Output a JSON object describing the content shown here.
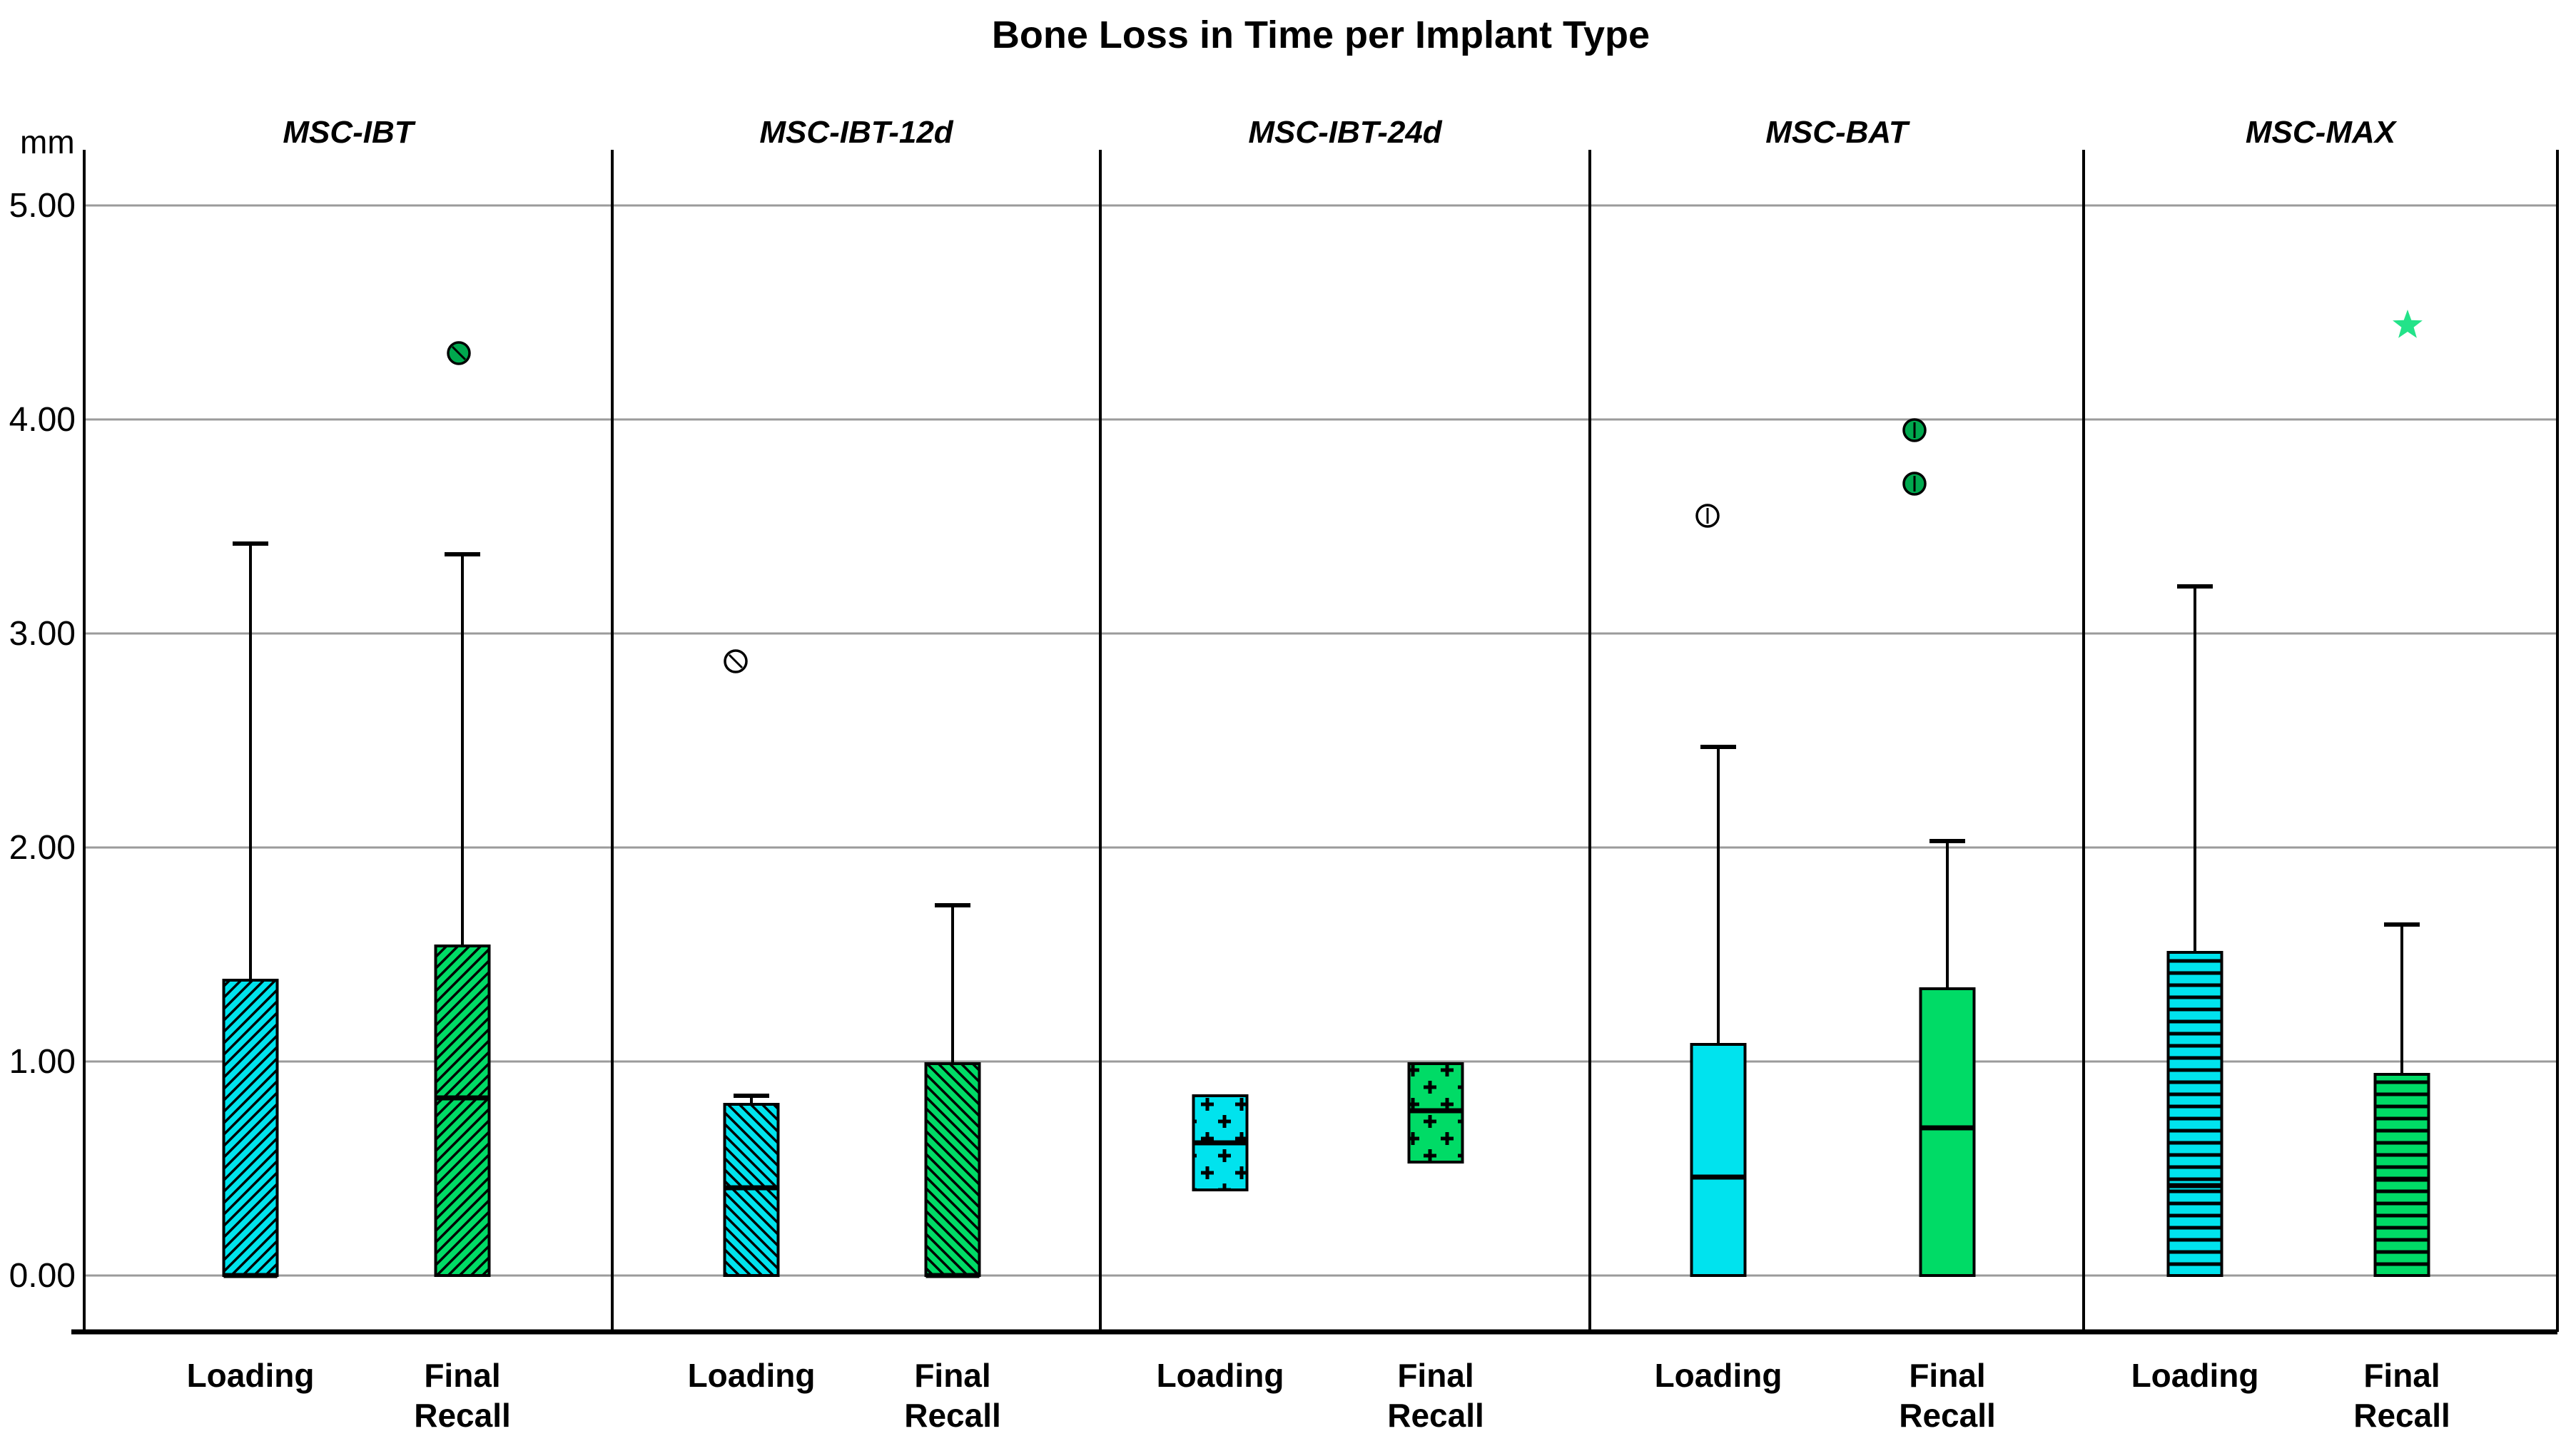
{
  "title": "Bone Loss in Time per Implant Type",
  "y_axis": {
    "unit_label": "mm",
    "tick_labels": [
      "5.00",
      "4.00",
      "3.00",
      "2.00",
      "1.00",
      "0.00"
    ],
    "min": 0,
    "max": 5,
    "step": 1
  },
  "x_axis": {
    "categories": [
      "Loading",
      "Final Recall"
    ]
  },
  "colors": {
    "loading_fill": "#00e3ee",
    "final_fill": "#00db66",
    "outlier_green": "#00a84e",
    "star_green": "#23e389",
    "gridline": "#9b9b9b",
    "axis_line": "#000000",
    "text": "#000000",
    "background": "#ffffff"
  },
  "chart_data": {
    "type": "boxplot",
    "title": "Bone Loss in Time per Implant Type",
    "ylabel": "mm",
    "ylim": [
      0,
      5
    ],
    "grid": "horizontal",
    "legend": "none",
    "panels": [
      {
        "label": "MSC-IBT",
        "pattern": "diagonal-forward",
        "boxes": [
          {
            "category": "Loading",
            "fill": "loading",
            "q1": 0.0,
            "median": 0.0,
            "q3": 1.38,
            "whisker_high": 3.42,
            "whisker_low": null,
            "outliers": []
          },
          {
            "category": "Final Recall",
            "fill": "final",
            "q1": 0.0,
            "median": 0.83,
            "q3": 1.54,
            "whisker_high": 3.37,
            "whisker_low": null,
            "outliers": [
              {
                "value": 4.31,
                "marker": "circle-green-slash",
                "dx": -5
              }
            ]
          }
        ]
      },
      {
        "label": "MSC-IBT-12d",
        "pattern": "diagonal-back",
        "boxes": [
          {
            "category": "Loading",
            "fill": "loading",
            "q1": 0.0,
            "median": 0.41,
            "q3": 0.8,
            "whisker_high": 0.84,
            "whisker_low": null,
            "outliers": [
              {
                "value": 2.87,
                "marker": "circle-open-slash",
                "dx": -22
              }
            ]
          },
          {
            "category": "Final Recall",
            "fill": "final",
            "q1": 0.0,
            "median": 0.0,
            "q3": 0.99,
            "whisker_high": 1.73,
            "whisker_low": null,
            "outliers": []
          }
        ]
      },
      {
        "label": "MSC-IBT-24d",
        "pattern": "plus-grid",
        "boxes": [
          {
            "category": "Loading",
            "fill": "loading",
            "q1": 0.4,
            "median": 0.62,
            "q3": 0.84,
            "whisker_high": null,
            "whisker_low": null,
            "outliers": []
          },
          {
            "category": "Final Recall",
            "fill": "final",
            "q1": 0.53,
            "median": 0.77,
            "q3": 0.99,
            "whisker_high": null,
            "whisker_low": null,
            "outliers": []
          }
        ]
      },
      {
        "label": "MSC-BAT",
        "pattern": "solid",
        "boxes": [
          {
            "category": "Loading",
            "fill": "loading",
            "q1": 0.0,
            "median": 0.46,
            "q3": 1.08,
            "whisker_high": 2.47,
            "whisker_low": null,
            "outliers": [
              {
                "value": 3.55,
                "marker": "circle-open-vline",
                "dx": -15
              }
            ]
          },
          {
            "category": "Final Recall",
            "fill": "final",
            "q1": 0.0,
            "median": 0.69,
            "q3": 1.34,
            "whisker_high": 2.03,
            "whisker_low": null,
            "outliers": [
              {
                "value": 3.95,
                "marker": "circle-green-vline",
                "dx": -46
              },
              {
                "value": 3.7,
                "marker": "circle-green-vline",
                "dx": -46
              }
            ]
          }
        ]
      },
      {
        "label": "MSC-MAX",
        "pattern": "horizontal-lines",
        "boxes": [
          {
            "category": "Loading",
            "fill": "loading",
            "q1": 0.0,
            "median": 0.42,
            "q3": 1.51,
            "whisker_high": 3.22,
            "whisker_low": null,
            "outliers": []
          },
          {
            "category": "Final Recall",
            "fill": "final",
            "q1": 0.0,
            "median": 0.45,
            "q3": 0.94,
            "whisker_high": 1.64,
            "whisker_low": null,
            "outliers": [
              {
                "value": 4.44,
                "marker": "star",
                "dx": 8
              }
            ]
          }
        ]
      }
    ]
  }
}
